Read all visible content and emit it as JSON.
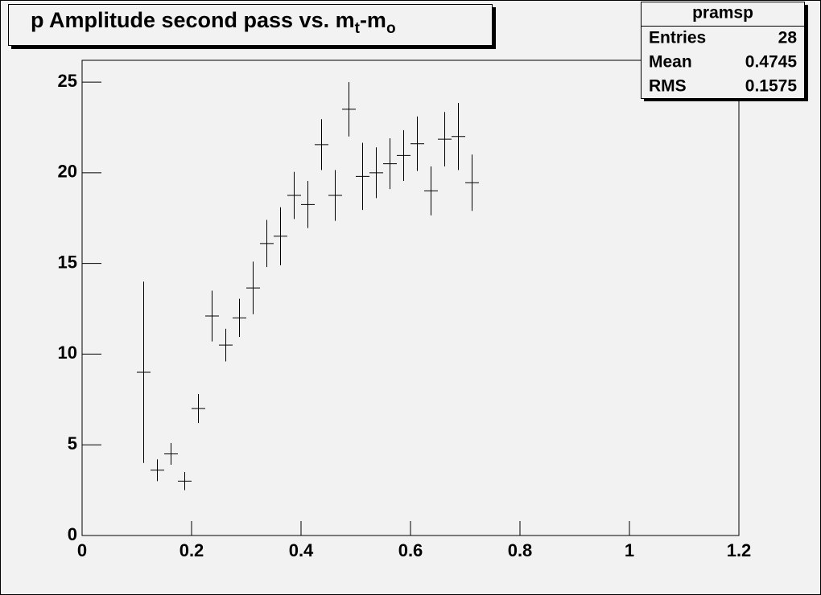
{
  "chart_data": {
    "type": "errorbar",
    "title": [
      "p Amplitude second pass vs. m",
      "t",
      "-m",
      "o"
    ],
    "stats": {
      "title": "pramsp",
      "rows": [
        [
          "Entries",
          28
        ],
        [
          "Mean",
          0.4745
        ],
        [
          "RMS",
          0.1575
        ]
      ]
    },
    "x": [
      0.1125,
      0.1375,
      0.1625,
      0.1875,
      0.2125,
      0.2375,
      0.2625,
      0.2875,
      0.3125,
      0.3375,
      0.3625,
      0.3875,
      0.4125,
      0.4375,
      0.4625,
      0.4875,
      0.5125,
      0.5375,
      0.5625,
      0.5875,
      0.6125,
      0.6375,
      0.6625,
      0.6875,
      0.7125
    ],
    "x_error": 0.0125,
    "series": [
      {
        "color": "#000000",
        "values": [
          9.0,
          3.6,
          4.5,
          3.0,
          7.0,
          12.1,
          10.5,
          12.0,
          13.65,
          16.1,
          16.5,
          18.75,
          18.25,
          21.55,
          18.75,
          23.5,
          19.8,
          20.0,
          20.5,
          20.95,
          21.6,
          19.0,
          21.85,
          22.0,
          19.45
        ],
        "errors": [
          5.0,
          0.6,
          0.6,
          0.5,
          0.8,
          1.4,
          0.9,
          1.05,
          1.45,
          1.3,
          1.6,
          1.3,
          1.3,
          1.4,
          1.4,
          1.5,
          1.85,
          1.4,
          1.4,
          1.4,
          1.5,
          1.35,
          1.5,
          1.85,
          1.55
        ]
      }
    ],
    "xlim": [
      0,
      1.2
    ],
    "xticks": [
      0,
      0.2,
      0.4,
      0.6,
      0.8,
      1,
      1.2
    ],
    "ylim": [
      0,
      26.2
    ],
    "yticks": [
      0,
      5,
      10,
      15,
      20,
      25
    ],
    "grid": false
  }
}
